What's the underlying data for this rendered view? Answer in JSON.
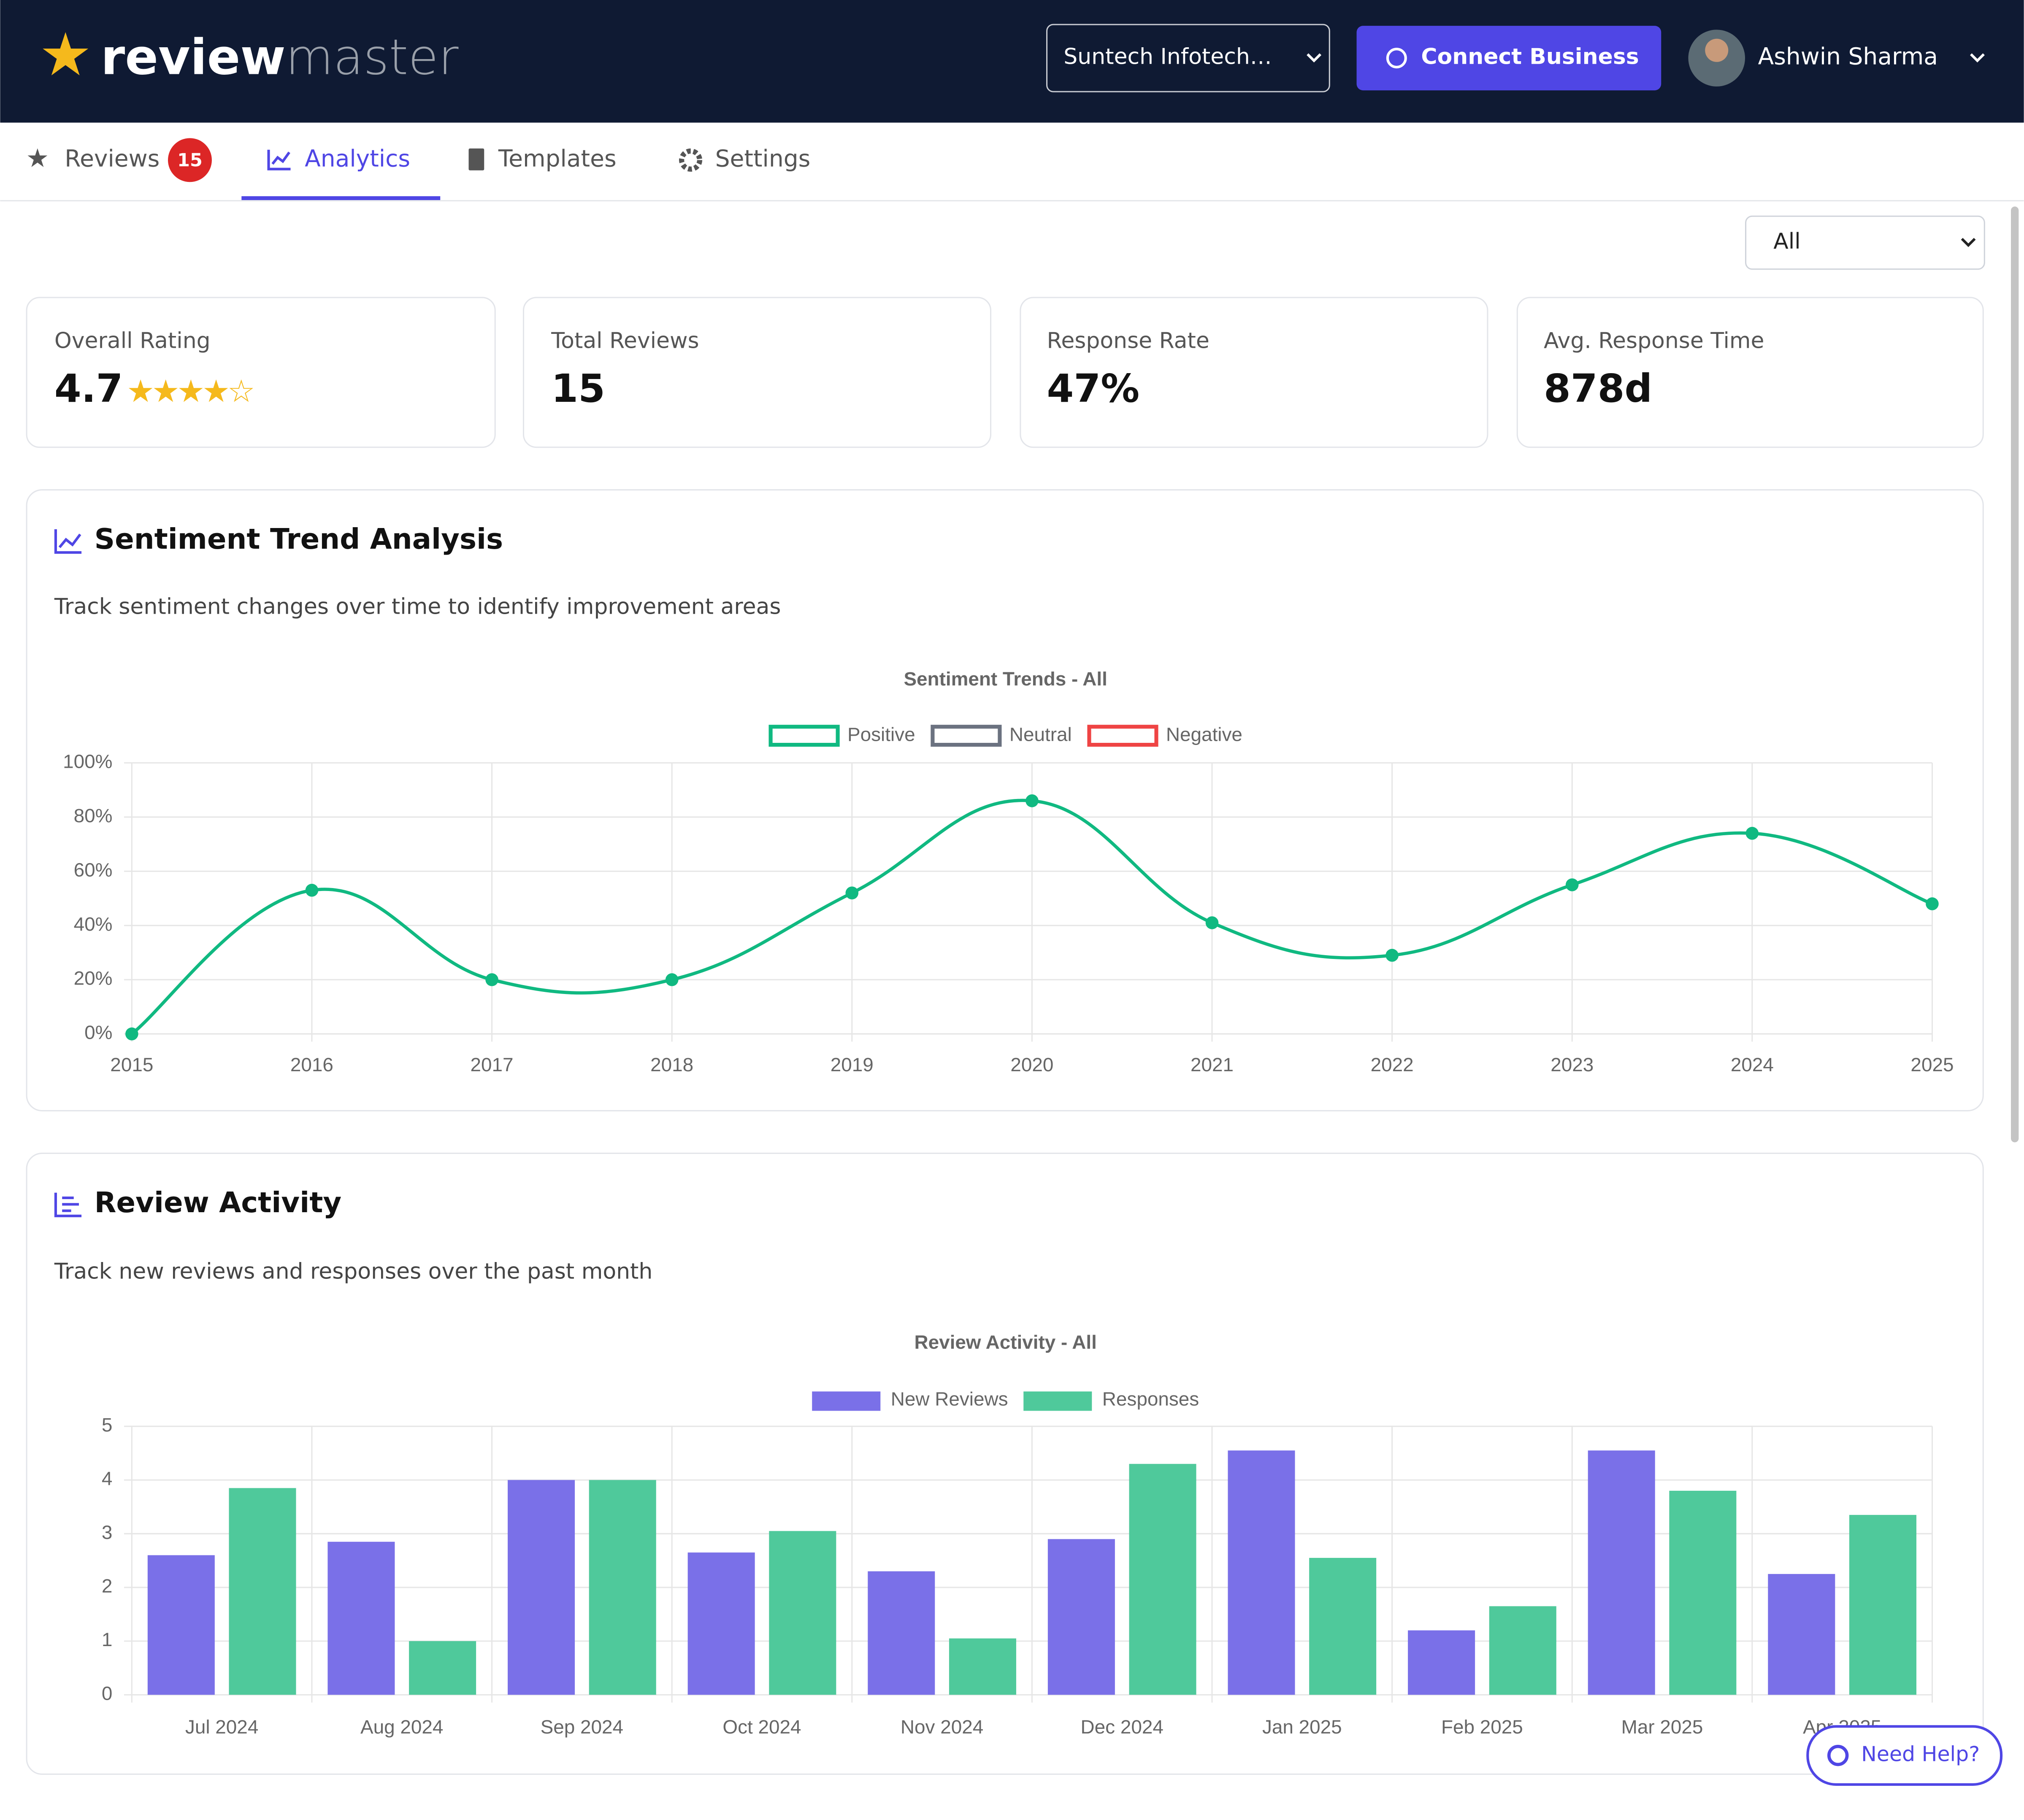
{
  "header": {
    "logo_left": "review",
    "logo_right": "master",
    "business": "Suntech Infotech…",
    "connect_button": "Connect Business",
    "user": "Ashwin Sharma"
  },
  "tabs": [
    {
      "label": "Reviews",
      "badge": "15"
    },
    {
      "label": "Analytics"
    },
    {
      "label": "Templates"
    },
    {
      "label": "Settings"
    }
  ],
  "filter": "All",
  "stats": [
    {
      "label": "Overall Rating",
      "value": "4.7"
    },
    {
      "label": "Total Reviews",
      "value": "15"
    },
    {
      "label": "Response Rate",
      "value": "47%"
    },
    {
      "label": "Avg. Response Time",
      "value": "878d"
    }
  ],
  "sections": [
    {
      "title": "Sentiment Trend Analysis",
      "description": "Track sentiment changes over time to identify improvement areas"
    },
    {
      "title": "Review Activity",
      "description": "Track new reviews and responses over the past month"
    }
  ],
  "chart_data": [
    {
      "type": "line",
      "title": "Sentiment Trends - All",
      "categories": [
        "2015",
        "2016",
        "2017",
        "2018",
        "2019",
        "2020",
        "2021",
        "2022",
        "2023",
        "2024",
        "2025"
      ],
      "series": [
        {
          "name": "Positive",
          "color": "#10b981",
          "values": [
            0,
            53,
            20,
            20,
            52,
            86,
            41,
            29,
            55,
            74,
            48
          ]
        },
        {
          "name": "Neutral",
          "color": "#6b7280",
          "values": [
            null,
            null,
            null,
            null,
            null,
            null,
            null,
            null,
            null,
            null,
            null
          ]
        },
        {
          "name": "Negative",
          "color": "#ef4444",
          "values": [
            null,
            null,
            null,
            null,
            null,
            null,
            null,
            null,
            null,
            null,
            null
          ]
        }
      ],
      "ylim": [
        0,
        100
      ],
      "yticks": [
        {
          "value": 0,
          "label": "0%"
        },
        {
          "value": 20,
          "label": "20%"
        },
        {
          "value": 40,
          "label": "40%"
        },
        {
          "value": 60,
          "label": "60%"
        },
        {
          "value": 80,
          "label": "80%"
        },
        {
          "value": 100,
          "label": "100%"
        }
      ],
      "grid": true
    },
    {
      "type": "bar",
      "title": "Review Activity - All",
      "categories": [
        "Jul 2024",
        "Aug 2024",
        "Sep 2024",
        "Oct 2024",
        "Nov 2024",
        "Dec 2024",
        "Jan 2025",
        "Feb 2025",
        "Mar 2025",
        "Apr 2025"
      ],
      "series": [
        {
          "name": "New Reviews",
          "color": "#7a70e8",
          "values": [
            2.6,
            2.85,
            4,
            2.65,
            2.3,
            2.9,
            4.55,
            1.2,
            4.55,
            2.25
          ]
        },
        {
          "name": "Responses",
          "color": "#4fc99b",
          "values": [
            3.85,
            1,
            4,
            3.05,
            1.05,
            4.3,
            2.55,
            1.65,
            3.8,
            3.35
          ]
        }
      ],
      "ylim": [
        0,
        5
      ],
      "yticks": [
        0,
        1,
        2,
        3,
        4,
        5
      ],
      "grid": true
    }
  ],
  "help_button": "Need Help?"
}
